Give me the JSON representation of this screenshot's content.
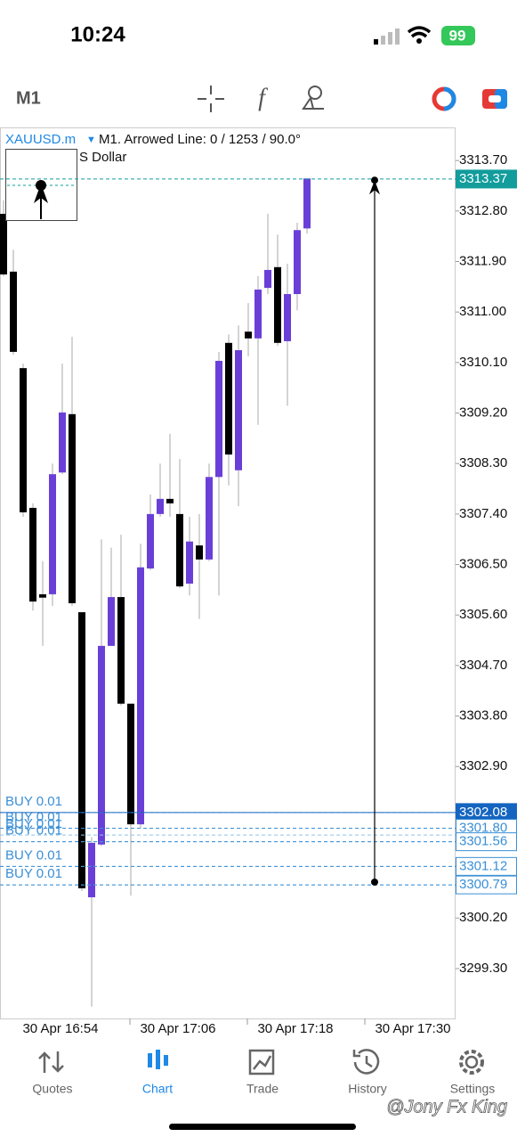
{
  "status_bar": {
    "time": "10:24",
    "battery": "99"
  },
  "toolbar": {
    "timeframe": "M1"
  },
  "chart_data": {
    "type": "candlestick",
    "symbol": "XAUUSD.m",
    "info": "M1. Arrowed Line: 0 / 1253 / 90.0°",
    "subtitle": "S Dollar",
    "up_color": "#6a3fd8",
    "down_color": "#000000",
    "open": [
      3312.75,
      3311.72,
      3310.0,
      3307.51,
      3305.97,
      3305.97,
      3308.14,
      3309.18,
      3305.65,
      3300.57,
      3301.51,
      3305.05,
      3305.92,
      3304.02,
      3301.87,
      3306.43,
      3307.4,
      3307.67,
      3307.4,
      3306.16,
      3306.84,
      3306.59,
      3308.06,
      3310.45,
      3308.18,
      3310.65,
      3310.53,
      3311.43,
      3311.8,
      3310.48,
      3311.32,
      3312.49
    ],
    "high": [
      3312.99,
      3312.11,
      3310.08,
      3307.59,
      3306.56,
      3308.3,
      3310.08,
      3310.56,
      3305.65,
      3301.64,
      3306.95,
      3306.8,
      3307.03,
      3304.02,
      3306.87,
      3307.75,
      3308.3,
      3308.83,
      3308.38,
      3307.35,
      3307.4,
      3308.3,
      3310.29,
      3310.6,
      3310.76,
      3311.16,
      3311.64,
      3312.75,
      3312.38,
      3311.86,
      3312.59,
      3313.38
    ],
    "low": [
      3311.64,
      3310.24,
      3307.35,
      3305.68,
      3305.05,
      3305.76,
      3308.11,
      3305.76,
      3300.68,
      3298.62,
      3301.48,
      3305.05,
      3303.99,
      3300.6,
      3301.8,
      3306.4,
      3307.35,
      3307.35,
      3306.08,
      3305.95,
      3305.53,
      3306.56,
      3305.95,
      3307.91,
      3307.54,
      3310.21,
      3308.99,
      3311.32,
      3310.4,
      3309.33,
      3311.03,
      3312.4
    ],
    "close": [
      3311.67,
      3310.29,
      3307.43,
      3305.84,
      3305.91,
      3308.11,
      3309.21,
      3305.81,
      3300.73,
      3301.54,
      3305.05,
      3305.92,
      3304.02,
      3301.87,
      3306.45,
      3307.4,
      3307.67,
      3307.59,
      3306.11,
      3306.91,
      3306.59,
      3308.06,
      3310.13,
      3308.46,
      3310.32,
      3310.53,
      3311.4,
      3311.75,
      3310.45,
      3311.32,
      3312.46,
      3313.38
    ],
    "ylim": [
      3298.41,
      3314.29
    ],
    "yticks": [
      {
        "value": 3313.7,
        "label": "3313.70"
      },
      {
        "value": 3312.8,
        "label": "3312.80"
      },
      {
        "value": 3311.9,
        "label": "3311.90"
      },
      {
        "value": 3311.0,
        "label": "3311.00"
      },
      {
        "value": 3310.1,
        "label": "3310.10"
      },
      {
        "value": 3309.2,
        "label": "3309.20"
      },
      {
        "value": 3308.3,
        "label": "3308.30"
      },
      {
        "value": 3307.4,
        "label": "3307.40"
      },
      {
        "value": 3306.5,
        "label": "3306.50"
      },
      {
        "value": 3305.6,
        "label": "3305.60"
      },
      {
        "value": 3304.7,
        "label": "3304.70"
      },
      {
        "value": 3303.8,
        "label": "3303.80"
      },
      {
        "value": 3302.9,
        "label": "3302.90"
      },
      {
        "value": 3300.2,
        "label": "3300.20"
      },
      {
        "value": 3299.3,
        "label": "3299.30"
      }
    ],
    "x_labels": [
      "30 Apr 16:54",
      "30 Apr 17:06",
      "30 Apr 17:18",
      "30 Apr 17:30"
    ],
    "price_lines": [
      {
        "value": 3313.37,
        "label": "3313.37",
        "color": "#129c9c",
        "filled": true,
        "dashed": true
      },
      {
        "value": 3302.08,
        "label": "3302.08",
        "color": "#1565c0",
        "filled": true,
        "dashed": false
      },
      {
        "value": 3301.8,
        "label": "3301.80",
        "color": "#3a8fd6",
        "filled": false,
        "dashed": true
      },
      {
        "value": 3301.56,
        "label": "3301.56",
        "color": "#3a8fd6",
        "filled": false,
        "dashed": true
      },
      {
        "value": 3301.12,
        "label": "3301.12",
        "color": "#3a8fd6",
        "filled": false,
        "dashed": true
      },
      {
        "value": 3300.79,
        "label": "3300.79",
        "color": "#3a8fd6",
        "filled": false,
        "dashed": true
      }
    ],
    "orders": [
      {
        "text": "BUY 0.01",
        "price": 3302.08
      },
      {
        "text": "BUY 0.01",
        "price": 3301.8
      },
      {
        "text": "BUY 0.01",
        "price": 3301.68
      },
      {
        "text": "BUY 0.01",
        "price": 3301.56
      },
      {
        "text": "BUY 0.01",
        "price": 3301.12
      },
      {
        "text": "BUY 0.01",
        "price": 3300.79
      }
    ],
    "arrow": {
      "from": 3300.84,
      "to": 3313.35
    }
  },
  "tabs": [
    "Quotes",
    "Chart",
    "Trade",
    "History",
    "Settings"
  ],
  "active_tab": 1,
  "watermark": "@Jony Fx King"
}
